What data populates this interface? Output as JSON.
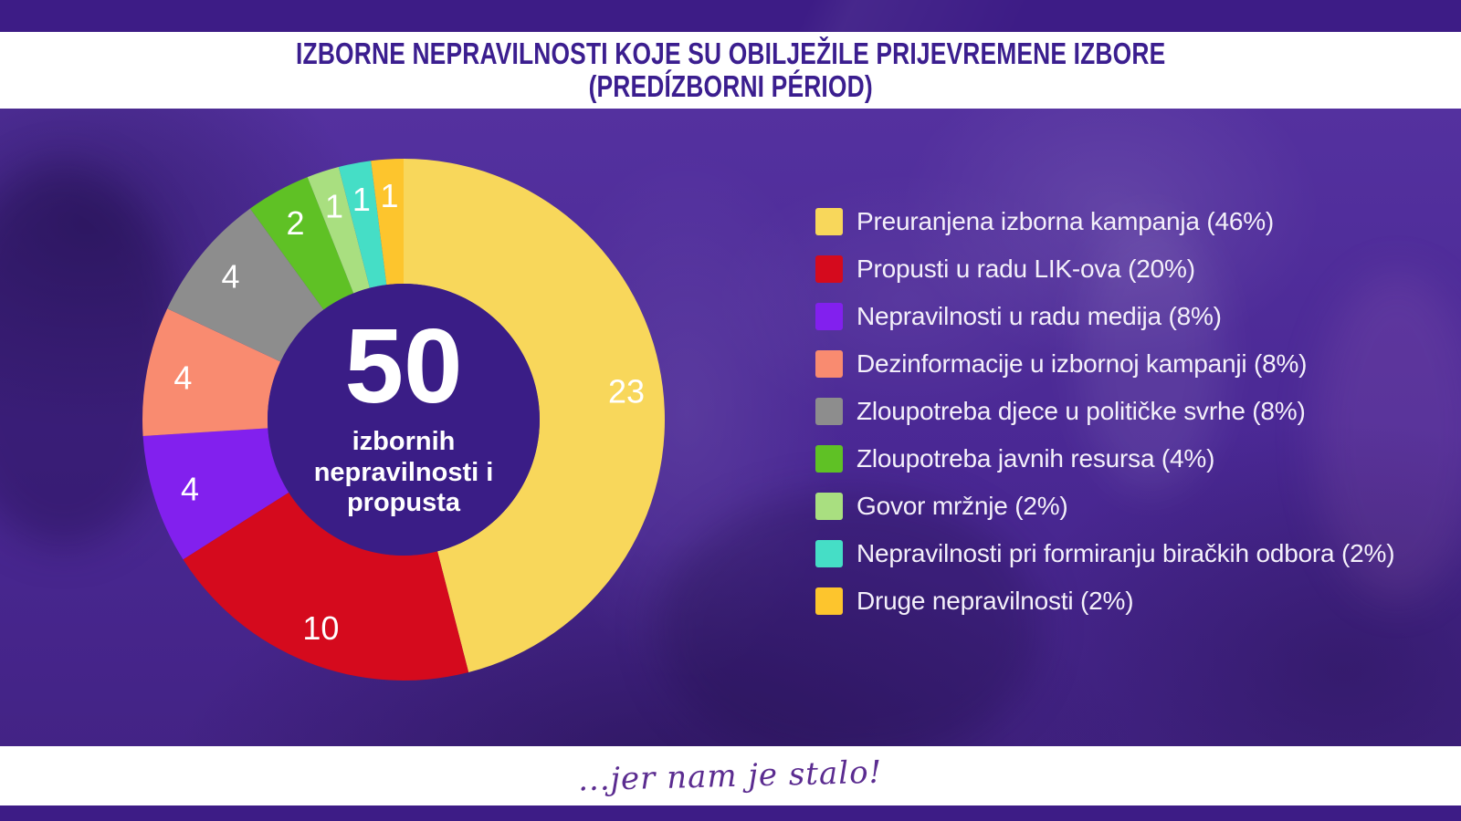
{
  "title": {
    "line1": "IZBORNE NEPRAVILNOSTI KOJE SU OBILJEŽILE PRIJEVREMENE IZBORE",
    "line2": "(PREDÍZBORNI PÉRIOD)"
  },
  "footer": {
    "text": "...jer nam je stalo!"
  },
  "theme": {
    "strip_color": "#3D1C86",
    "band_color": "#FFFFFF",
    "background_purple": "#4C2B97",
    "center_circle_color": "#3A1D86",
    "title_color": "#3B1E8F",
    "legend_text_color": "#F4F0FA",
    "slice_label_color": "#FFFFFF",
    "footer_text_color": "#5B2C90"
  },
  "chart_data": {
    "type": "donut",
    "title": "Izborne nepravilnosti koje su obilježile prijevremene izbore (predizborni period)",
    "total_value": 50,
    "center": {
      "value": "50",
      "label_lines": [
        "izbornih",
        "nepravilnosti i",
        "propusta"
      ]
    },
    "legend_position": "right",
    "start_angle_deg": 0,
    "direction": "clockwise",
    "series": [
      {
        "label": "Preuranjena izborna kampanja",
        "display": "Preuranjena izborna kampanja (46%)",
        "value": 23,
        "pct": 46,
        "color": "#F8D75B"
      },
      {
        "label": "Propusti u radu LIK-ova",
        "display": "Propusti u radu LIK-ova (20%)",
        "value": 10,
        "pct": 20,
        "color": "#D50A1D"
      },
      {
        "label": "Nepravilnosti u radu medija",
        "display": "Nepravilnosti u radu medija (8%)",
        "value": 4,
        "pct": 8,
        "color": "#8220EE"
      },
      {
        "label": "Dezinformacije u izbornoj kampanji",
        "display": "Dezinformacije u izbornoj kampanji (8%)",
        "value": 4,
        "pct": 8,
        "color": "#F98B70"
      },
      {
        "label": "Zloupotreba djece u političke svrhe",
        "display": "Zloupotreba djece u političke svrhe (8%)",
        "value": 4,
        "pct": 8,
        "color": "#8D8D8D"
      },
      {
        "label": "Zloupotreba javnih resursa",
        "display": "Zloupotreba javnih resursa (4%)",
        "value": 2,
        "pct": 4,
        "color": "#5FC125"
      },
      {
        "label": "Govor mržnje",
        "display": "Govor mržnje (2%)",
        "value": 1,
        "pct": 2,
        "color": "#A9DF80"
      },
      {
        "label": "Nepravilnosti pri formiranju biračkih odbora",
        "display": "Nepravilnosti pri formiranju biračkih odbora (2%)",
        "value": 1,
        "pct": 2,
        "color": "#45DEC6"
      },
      {
        "label": "Druge nepravilnosti",
        "display": "Druge nepravilnosti (2%)",
        "value": 1,
        "pct": 2,
        "color": "#FDC52D"
      }
    ]
  }
}
